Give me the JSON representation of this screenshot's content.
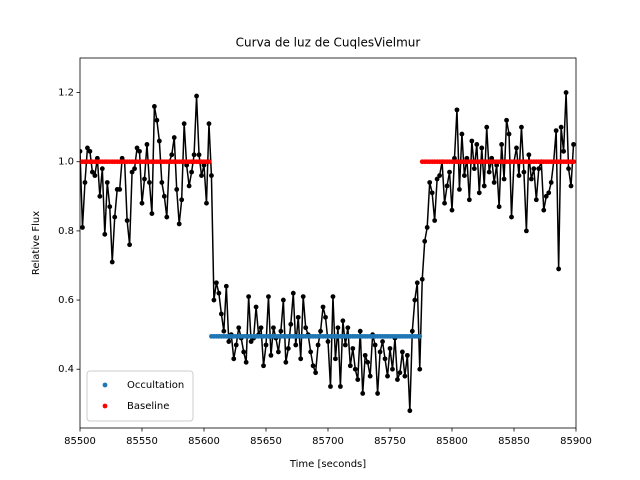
{
  "chart_data": {
    "type": "line",
    "title": "Curva de luz de CuqlesVielmur",
    "x_label": "Time [seconds]",
    "y_label": "Relative Flux",
    "xlim": [
      85500,
      85900
    ],
    "ylim": [
      0.23,
      1.3
    ],
    "xticks": [
      85500,
      85550,
      85600,
      85650,
      85700,
      85750,
      85800,
      85850,
      85900
    ],
    "yticks": [
      0.4,
      0.6,
      0.8,
      {
        "value": 1,
        "label": "1.0"
      },
      1.2
    ],
    "grid": false,
    "legend": "lower left",
    "series": [
      {
        "color": "#000000",
        "line": true,
        "marker": true,
        "x": [
          85500,
          85502,
          85504,
          85506,
          85508,
          85510,
          85512,
          85514,
          85516,
          85518,
          85520,
          85522,
          85524,
          85526,
          85528,
          85530,
          85532,
          85534,
          85536,
          85538,
          85540,
          85542,
          85544,
          85546,
          85548,
          85550,
          85552,
          85554,
          85556,
          85558,
          85560,
          85562,
          85564,
          85566,
          85568,
          85570,
          85572,
          85574,
          85576,
          85578,
          85580,
          85582,
          85584,
          85586,
          85588,
          85590,
          85592,
          85594,
          85596,
          85598,
          85600,
          85602,
          85604,
          85606,
          85608,
          85610,
          85612,
          85614,
          85616,
          85618,
          85620,
          85622,
          85624,
          85626,
          85628,
          85630,
          85632,
          85634,
          85636,
          85638,
          85640,
          85642,
          85644,
          85646,
          85648,
          85650,
          85652,
          85654,
          85656,
          85658,
          85660,
          85662,
          85664,
          85666,
          85668,
          85670,
          85672,
          85674,
          85676,
          85678,
          85680,
          85682,
          85684,
          85686,
          85688,
          85690,
          85692,
          85694,
          85696,
          85698,
          85700,
          85702,
          85704,
          85706,
          85708,
          85710,
          85712,
          85714,
          85716,
          85718,
          85720,
          85722,
          85724,
          85726,
          85728,
          85730,
          85732,
          85734,
          85736,
          85738,
          85740,
          85742,
          85744,
          85746,
          85748,
          85750,
          85752,
          85754,
          85756,
          85758,
          85760,
          85762,
          85764,
          85766,
          85768,
          85770,
          85772,
          85774,
          85776,
          85778,
          85780,
          85782,
          85784,
          85786,
          85788,
          85790,
          85792,
          85794,
          85796,
          85798,
          85800,
          85802,
          85804,
          85806,
          85808,
          85810,
          85812,
          85814,
          85816,
          85818,
          85820,
          85822,
          85824,
          85826,
          85828,
          85830,
          85832,
          85834,
          85836,
          85838,
          85840,
          85842,
          85844,
          85846,
          85848,
          85850,
          85852,
          85854,
          85856,
          85858,
          85860,
          85862,
          85864,
          85866,
          85868,
          85870,
          85872,
          85874,
          85876,
          85878,
          85880,
          85882,
          85884,
          85886,
          85888,
          85890,
          85892,
          85894,
          85896,
          85898
        ],
        "values": [
          1.03,
          0.81,
          0.94,
          1.04,
          1.03,
          0.97,
          0.96,
          1.01,
          0.9,
          0.98,
          0.79,
          0.94,
          0.87,
          0.71,
          0.84,
          0.92,
          0.92,
          1.01,
          1.0,
          0.83,
          0.76,
          0.97,
          0.98,
          1.04,
          1.03,
          0.88,
          0.95,
          1.05,
          0.94,
          0.85,
          1.16,
          1.12,
          1.06,
          0.94,
          0.9,
          0.84,
          1.0,
          1.02,
          1.07,
          0.92,
          0.82,
          0.89,
          1.11,
          0.99,
          0.93,
          0.97,
          1.02,
          1.19,
          1.02,
          0.96,
          0.99,
          0.88,
          1.11,
          0.96,
          0.6,
          0.65,
          0.62,
          0.56,
          0.51,
          0.64,
          0.48,
          0.5,
          0.43,
          0.47,
          0.52,
          0.49,
          0.45,
          0.42,
          0.61,
          0.48,
          0.49,
          0.58,
          0.5,
          0.52,
          0.41,
          0.47,
          0.61,
          0.44,
          0.52,
          0.49,
          0.45,
          0.51,
          0.6,
          0.42,
          0.46,
          0.53,
          0.62,
          0.47,
          0.55,
          0.43,
          0.61,
          0.52,
          0.5,
          0.45,
          0.41,
          0.39,
          0.47,
          0.51,
          0.58,
          0.55,
          0.48,
          0.35,
          0.61,
          0.43,
          0.52,
          0.35,
          0.54,
          0.47,
          0.52,
          0.41,
          0.46,
          0.4,
          0.37,
          0.51,
          0.33,
          0.44,
          0.42,
          0.38,
          0.5,
          0.47,
          0.33,
          0.45,
          0.48,
          0.43,
          0.38,
          0.46,
          0.4,
          0.49,
          0.37,
          0.39,
          0.45,
          0.38,
          0.44,
          0.28,
          0.51,
          0.6,
          0.65,
          0.4,
          0.66,
          0.77,
          0.81,
          0.94,
          0.91,
          0.83,
          0.95,
          0.96,
          1.0,
          0.88,
          0.93,
          0.97,
          0.86,
          1.01,
          1.15,
          0.92,
          1.08,
          0.96,
          1.01,
          0.89,
          1.06,
          0.98,
          1.05,
          0.91,
          1.04,
          0.93,
          1.1,
          0.97,
          1.01,
          0.94,
          0.99,
          0.87,
          1.05,
          0.95,
          1.12,
          1.08,
          0.84,
          1.0,
          1.04,
          0.96,
          1.1,
          0.97,
          0.8,
          1.02,
          0.95,
          0.98,
          0.89,
          0.98,
          1.0,
          0.86,
          0.9,
          0.91,
          0.94,
          1.0,
          1.09,
          0.69,
          1.1,
          1.03,
          1.2,
          0.98,
          0.93,
          1.05
        ]
      },
      {
        "name": "Occultation",
        "color": "#1f77b4",
        "line": false,
        "marker": true,
        "x": [
          85606,
          85608,
          85610,
          85612,
          85614,
          85616,
          85618,
          85620,
          85622,
          85624,
          85626,
          85628,
          85630,
          85632,
          85634,
          85636,
          85638,
          85640,
          85642,
          85644,
          85646,
          85648,
          85650,
          85652,
          85654,
          85656,
          85658,
          85660,
          85662,
          85664,
          85666,
          85668,
          85670,
          85672,
          85674,
          85676,
          85678,
          85680,
          85682,
          85684,
          85686,
          85688,
          85690,
          85692,
          85694,
          85696,
          85698,
          85700,
          85702,
          85704,
          85706,
          85708,
          85710,
          85712,
          85714,
          85716,
          85718,
          85720,
          85722,
          85724,
          85726,
          85728,
          85730,
          85732,
          85734,
          85736,
          85738,
          85740,
          85742,
          85744,
          85746,
          85748,
          85750,
          85752,
          85754,
          85756,
          85758,
          85760,
          85762,
          85764,
          85766,
          85768,
          85770,
          85772,
          85774
        ],
        "values": [
          0.495,
          0.495,
          0.495,
          0.495,
          0.495,
          0.495,
          0.495,
          0.495,
          0.495,
          0.495,
          0.495,
          0.495,
          0.495,
          0.495,
          0.495,
          0.495,
          0.495,
          0.495,
          0.495,
          0.495,
          0.495,
          0.495,
          0.495,
          0.495,
          0.495,
          0.495,
          0.495,
          0.495,
          0.495,
          0.495,
          0.495,
          0.495,
          0.495,
          0.495,
          0.495,
          0.495,
          0.495,
          0.495,
          0.495,
          0.495,
          0.495,
          0.495,
          0.495,
          0.495,
          0.495,
          0.495,
          0.495,
          0.495,
          0.495,
          0.495,
          0.495,
          0.495,
          0.495,
          0.495,
          0.495,
          0.495,
          0.495,
          0.495,
          0.495,
          0.495,
          0.495,
          0.495,
          0.495,
          0.495,
          0.495,
          0.495,
          0.495,
          0.495,
          0.495,
          0.495,
          0.495,
          0.495,
          0.495,
          0.495,
          0.495,
          0.495,
          0.495,
          0.495,
          0.495,
          0.495,
          0.495,
          0.495,
          0.495,
          0.495,
          0.495
        ]
      },
      {
        "name": "Baseline",
        "color": "#ff0000",
        "line": false,
        "marker": true,
        "x": [
          85500,
          85502,
          85504,
          85506,
          85508,
          85510,
          85512,
          85514,
          85516,
          85518,
          85520,
          85522,
          85524,
          85526,
          85528,
          85530,
          85532,
          85534,
          85536,
          85538,
          85540,
          85542,
          85544,
          85546,
          85548,
          85550,
          85552,
          85554,
          85556,
          85558,
          85560,
          85562,
          85564,
          85566,
          85568,
          85570,
          85572,
          85574,
          85576,
          85578,
          85580,
          85582,
          85584,
          85586,
          85588,
          85590,
          85592,
          85594,
          85596,
          85598,
          85600,
          85602,
          85604,
          85776,
          85778,
          85780,
          85782,
          85784,
          85786,
          85788,
          85790,
          85792,
          85794,
          85796,
          85798,
          85800,
          85802,
          85804,
          85806,
          85808,
          85810,
          85812,
          85814,
          85816,
          85818,
          85820,
          85822,
          85824,
          85826,
          85828,
          85830,
          85832,
          85834,
          85836,
          85838,
          85840,
          85842,
          85844,
          85846,
          85848,
          85850,
          85852,
          85854,
          85856,
          85858,
          85860,
          85862,
          85864,
          85866,
          85868,
          85870,
          85872,
          85874,
          85876,
          85878,
          85880,
          85882,
          85884,
          85886,
          85888,
          85890,
          85892,
          85894,
          85896,
          85898
        ],
        "values": [
          1,
          1,
          1,
          1,
          1,
          1,
          1,
          1,
          1,
          1,
          1,
          1,
          1,
          1,
          1,
          1,
          1,
          1,
          1,
          1,
          1,
          1,
          1,
          1,
          1,
          1,
          1,
          1,
          1,
          1,
          1,
          1,
          1,
          1,
          1,
          1,
          1,
          1,
          1,
          1,
          1,
          1,
          1,
          1,
          1,
          1,
          1,
          1,
          1,
          1,
          1,
          1,
          1,
          1,
          1,
          1,
          1,
          1,
          1,
          1,
          1,
          1,
          1,
          1,
          1,
          1,
          1,
          1,
          1,
          1,
          1,
          1,
          1,
          1,
          1,
          1,
          1,
          1,
          1,
          1,
          1,
          1,
          1,
          1,
          1,
          1,
          1,
          1,
          1,
          1,
          1,
          1,
          1,
          1,
          1,
          1,
          1,
          1,
          1,
          1,
          1,
          1,
          1,
          1,
          1,
          1,
          1,
          1,
          1,
          1,
          1,
          1,
          1,
          1,
          1
        ]
      }
    ]
  }
}
